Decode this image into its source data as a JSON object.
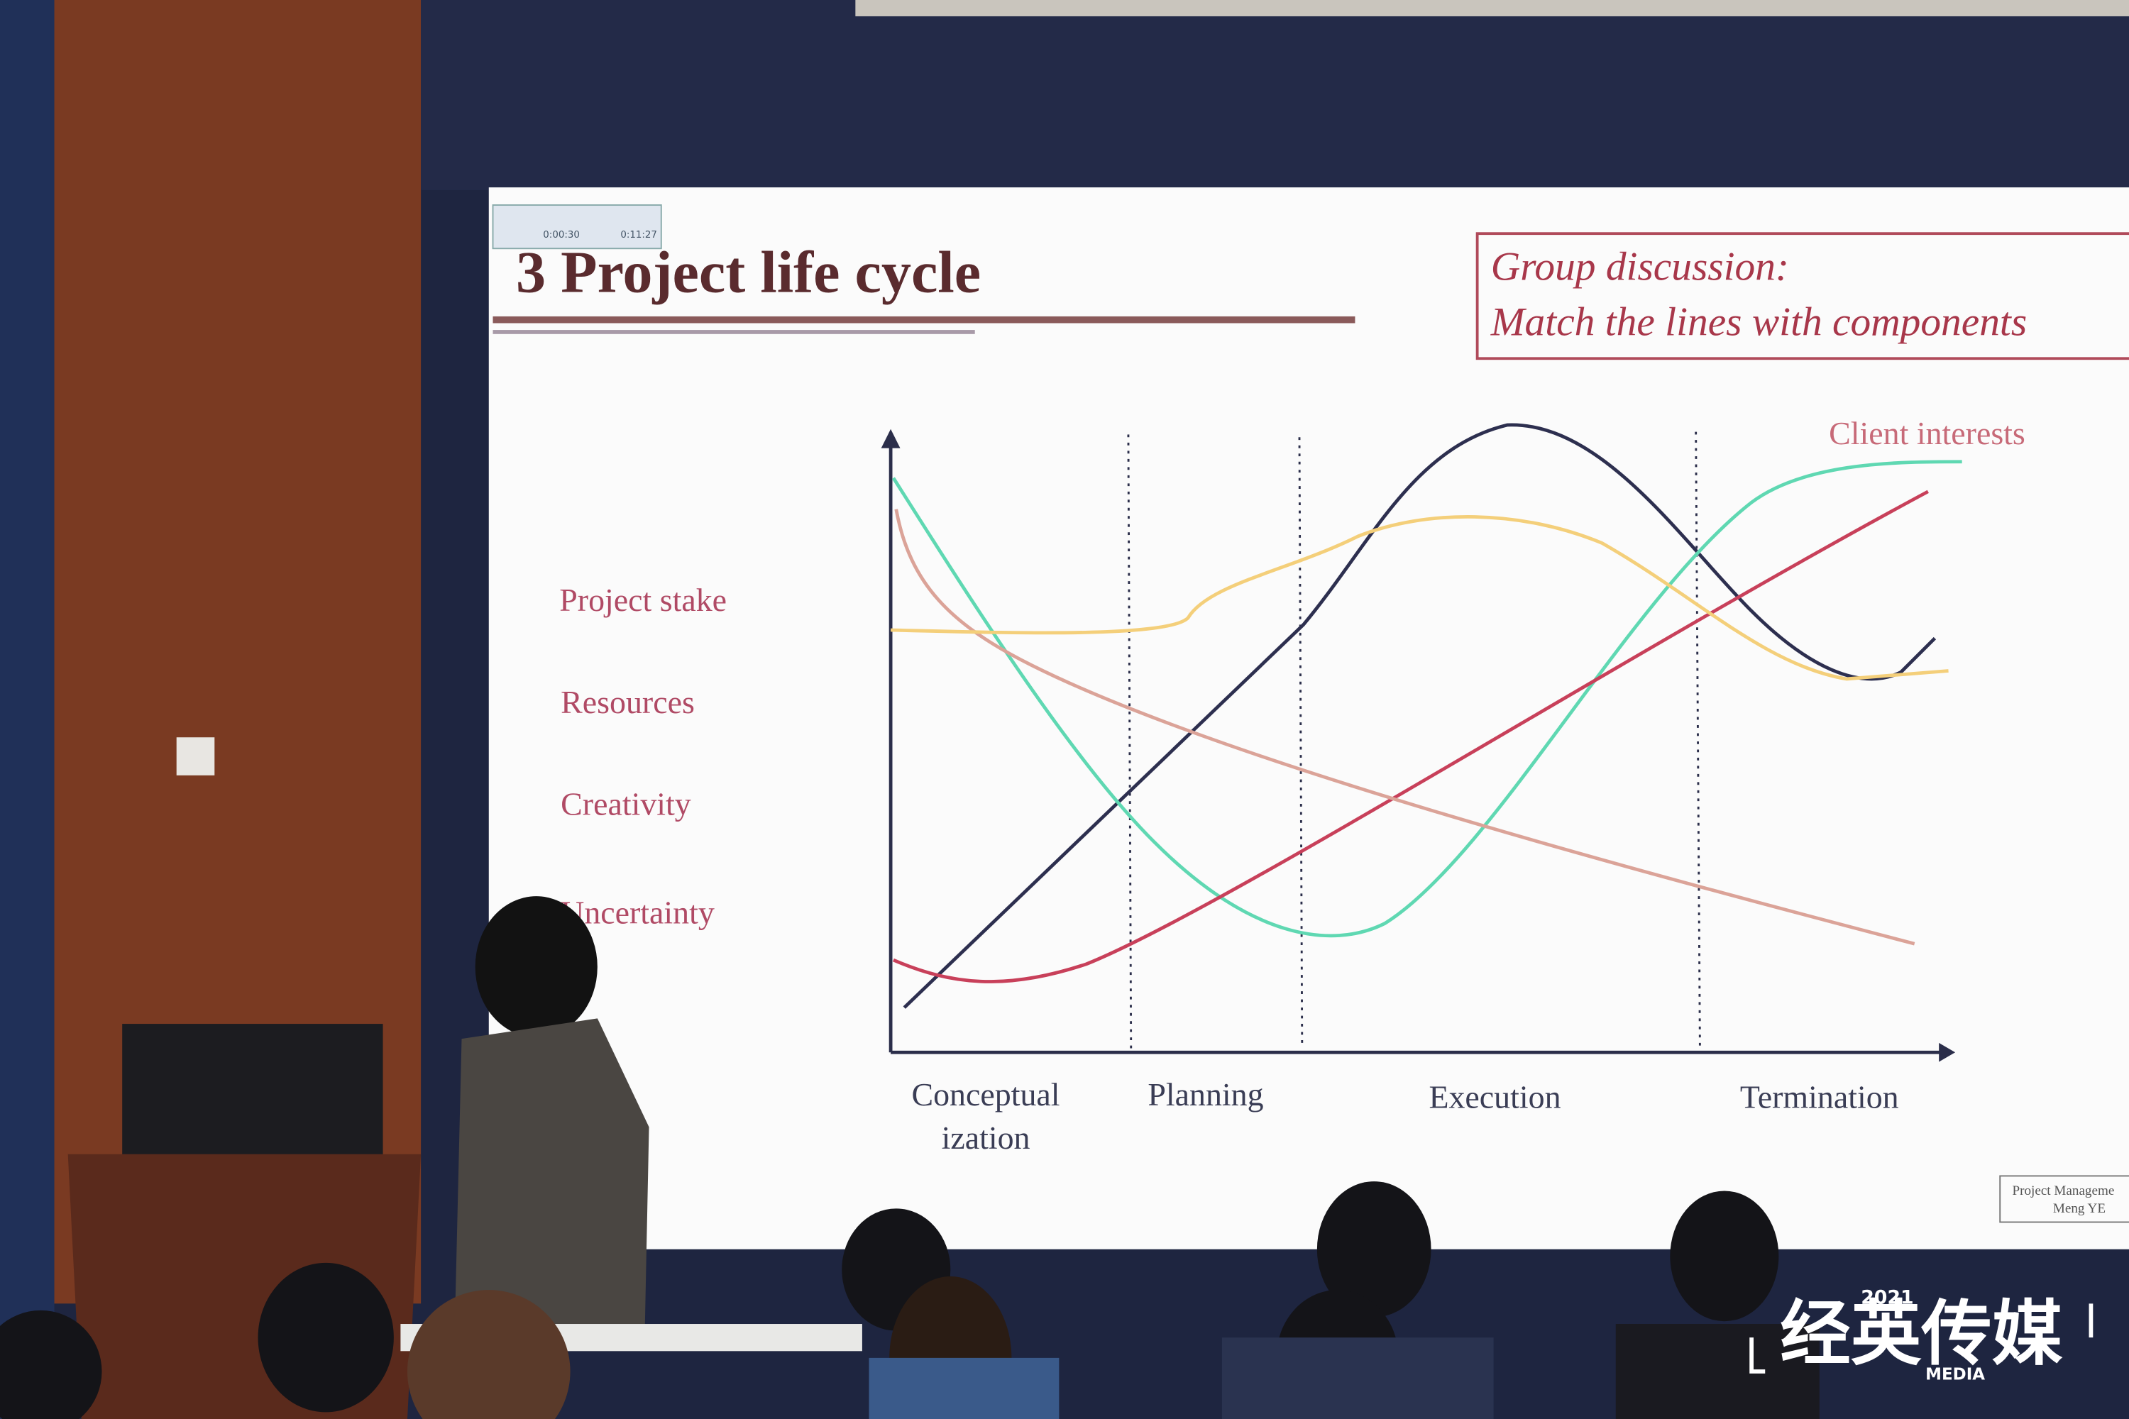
{
  "slide": {
    "title": "3 Project life cycle",
    "discussion": [
      "Group discussion:",
      "Match the lines with components"
    ],
    "top_label": "Client interests",
    "left_labels": [
      "Project stake",
      "Resources",
      "Creativity",
      "Uncertainty"
    ],
    "phases": [
      "Conceptual",
      "ization",
      "Planning",
      "Execution",
      "Termination"
    ],
    "footer": [
      "Project Manageme",
      "Meng YE"
    ]
  },
  "recorder": [
    "0:00:30",
    "0:11:27"
  ],
  "logo": {
    "year": "2021",
    "name": "经英传媒",
    "sub": "MEDIA"
  }
}
